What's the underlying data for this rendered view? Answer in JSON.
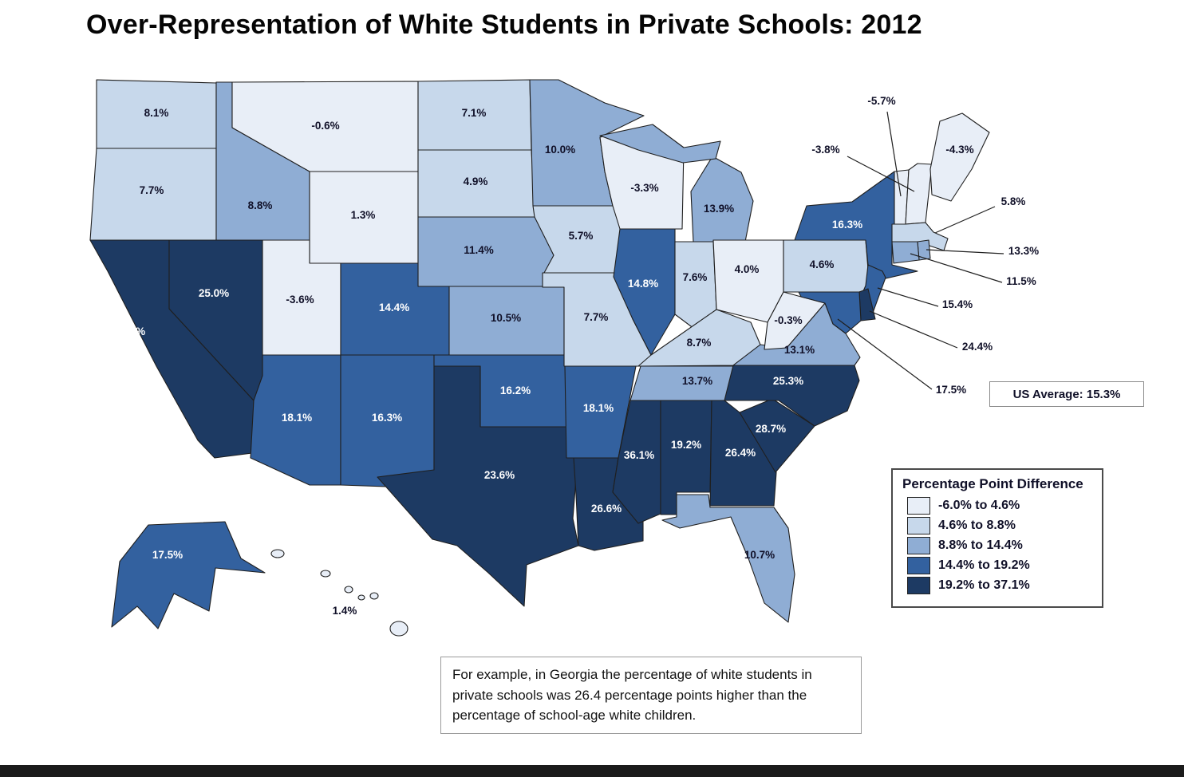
{
  "title": "Over-Representation of White Students in Private Schools: 2012",
  "us_average_box": {
    "label": "US Average: 15.3%"
  },
  "note_box": {
    "text": "For example, in Georgia the percentage of white students in private schools was 26.4 percentage points higher than the percentage of school-age white children."
  },
  "legend": {
    "title": "Percentage Point Difference",
    "position": "bottom-right",
    "classes": [
      {
        "label": "-6.0% to 4.6%",
        "color": "#e8eef7"
      },
      {
        "label": "4.6% to 8.8%",
        "color": "#c7d8eb"
      },
      {
        "label": "8.8% to 14.4%",
        "color": "#8fadd4"
      },
      {
        "label": "14.4% to 19.2%",
        "color": "#33619f"
      },
      {
        "label": "19.2% to 37.1%",
        "color": "#1d3a63"
      }
    ]
  },
  "chart_data": {
    "type": "choropleth_map",
    "region": "United States",
    "title": "Over-Representation of White Students in Private Schools: 2012",
    "metric": "Percentage point difference (white share of private school students minus white share of school-age children)",
    "unit": "percentage points",
    "year": 2012,
    "us_average": 15.3,
    "color_breaks": [
      -6.0,
      4.6,
      8.8,
      14.4,
      19.2,
      37.1
    ],
    "label_text_dark": "#101028",
    "label_text_light": "#ffffff",
    "states": [
      {
        "id": "WA",
        "name": "Washington",
        "value": 8.1,
        "display": "8.1%"
      },
      {
        "id": "OR",
        "name": "Oregon",
        "value": 7.7,
        "display": "7.7%"
      },
      {
        "id": "CA",
        "name": "California",
        "value": 20.8,
        "display": "20.8%"
      },
      {
        "id": "NV",
        "name": "Nevada",
        "value": 25.0,
        "display": "25.0%"
      },
      {
        "id": "ID",
        "name": "Idaho",
        "value": 8.8,
        "display": "8.8%"
      },
      {
        "id": "MT",
        "name": "Montana",
        "value": -0.6,
        "display": "-0.6%"
      },
      {
        "id": "WY",
        "name": "Wyoming",
        "value": 1.3,
        "display": "1.3%"
      },
      {
        "id": "UT",
        "name": "Utah",
        "value": -3.6,
        "display": "-3.6%"
      },
      {
        "id": "CO",
        "name": "Colorado",
        "value": 14.4,
        "display": "14.4%"
      },
      {
        "id": "AZ",
        "name": "Arizona",
        "value": 18.1,
        "display": "18.1%"
      },
      {
        "id": "NM",
        "name": "New Mexico",
        "value": 16.3,
        "display": "16.3%"
      },
      {
        "id": "ND",
        "name": "North Dakota",
        "value": 7.1,
        "display": "7.1%"
      },
      {
        "id": "SD",
        "name": "South Dakota",
        "value": 4.9,
        "display": "4.9%"
      },
      {
        "id": "NE",
        "name": "Nebraska",
        "value": 11.4,
        "display": "11.4%"
      },
      {
        "id": "KS",
        "name": "Kansas",
        "value": 10.5,
        "display": "10.5%"
      },
      {
        "id": "OK",
        "name": "Oklahoma",
        "value": 16.2,
        "display": "16.2%"
      },
      {
        "id": "TX",
        "name": "Texas",
        "value": 23.6,
        "display": "23.6%"
      },
      {
        "id": "MN",
        "name": "Minnesota",
        "value": 10.0,
        "display": "10.0%"
      },
      {
        "id": "IA",
        "name": "Iowa",
        "value": 5.7,
        "display": "5.7%"
      },
      {
        "id": "MO",
        "name": "Missouri",
        "value": 7.7,
        "display": "7.7%"
      },
      {
        "id": "AR",
        "name": "Arkansas",
        "value": 18.1,
        "display": "18.1%"
      },
      {
        "id": "LA",
        "name": "Louisiana",
        "value": 26.6,
        "display": "26.6%"
      },
      {
        "id": "WI",
        "name": "Wisconsin",
        "value": -3.3,
        "display": "-3.3%"
      },
      {
        "id": "IL",
        "name": "Illinois",
        "value": 14.8,
        "display": "14.8%"
      },
      {
        "id": "MI",
        "name": "Michigan",
        "value": 13.9,
        "display": "13.9%"
      },
      {
        "id": "IN",
        "name": "Indiana",
        "value": 7.6,
        "display": "7.6%"
      },
      {
        "id": "OH",
        "name": "Ohio",
        "value": 4.0,
        "display": "4.0%"
      },
      {
        "id": "KY",
        "name": "Kentucky",
        "value": 8.7,
        "display": "8.7%"
      },
      {
        "id": "TN",
        "name": "Tennessee",
        "value": 13.7,
        "display": "13.7%"
      },
      {
        "id": "MS",
        "name": "Mississippi",
        "value": 36.1,
        "display": "36.1%"
      },
      {
        "id": "AL",
        "name": "Alabama",
        "value": 19.2,
        "display": "19.2%"
      },
      {
        "id": "GA",
        "name": "Georgia",
        "value": 26.4,
        "display": "26.4%"
      },
      {
        "id": "FL",
        "name": "Florida",
        "value": 10.7,
        "display": "10.7%"
      },
      {
        "id": "SC",
        "name": "South Carolina",
        "value": 28.7,
        "display": "28.7%"
      },
      {
        "id": "NC",
        "name": "North Carolina",
        "value": 25.3,
        "display": "25.3%"
      },
      {
        "id": "VA",
        "name": "Virginia",
        "value": 13.1,
        "display": "13.1%"
      },
      {
        "id": "WV",
        "name": "West Virginia",
        "value": -0.3,
        "display": "-0.3%"
      },
      {
        "id": "PA",
        "name": "Pennsylvania",
        "value": 4.6,
        "display": "4.6%"
      },
      {
        "id": "NY",
        "name": "New York",
        "value": 16.3,
        "display": "16.3%"
      },
      {
        "id": "NJ",
        "name": "New Jersey",
        "value": 15.4,
        "display": "15.4%"
      },
      {
        "id": "DE",
        "name": "Delaware",
        "value": 24.4,
        "display": "24.4%"
      },
      {
        "id": "MD",
        "name": "Maryland",
        "value": 17.5,
        "display": "17.5%"
      },
      {
        "id": "VT",
        "name": "Vermont",
        "value": -5.7,
        "display": "-5.7%"
      },
      {
        "id": "NH",
        "name": "New Hampshire",
        "value": -3.8,
        "display": "-3.8%"
      },
      {
        "id": "MA",
        "name": "Massachusetts",
        "value": 5.8,
        "display": "5.8%"
      },
      {
        "id": "RI",
        "name": "Rhode Island",
        "value": 13.3,
        "display": "13.3%"
      },
      {
        "id": "CT",
        "name": "Connecticut",
        "value": 11.5,
        "display": "11.5%"
      },
      {
        "id": "ME",
        "name": "Maine",
        "value": -4.3,
        "display": "-4.3%"
      },
      {
        "id": "AK",
        "name": "Alaska",
        "value": 17.5,
        "display": "17.5%"
      },
      {
        "id": "HI",
        "name": "Hawaii",
        "value": 1.4,
        "display": "1.4%"
      }
    ]
  }
}
